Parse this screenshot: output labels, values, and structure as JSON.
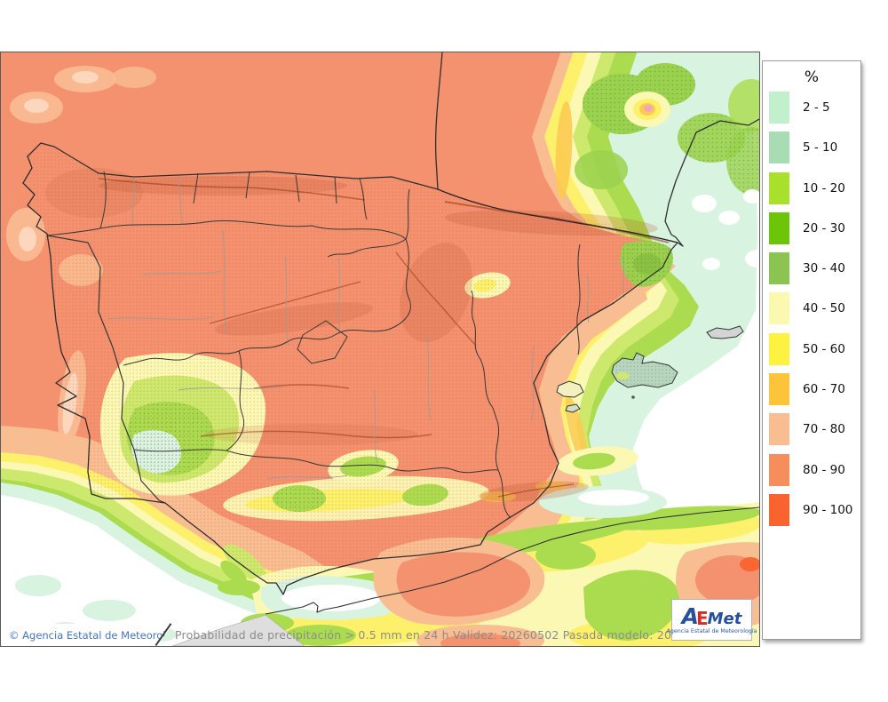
{
  "map": {
    "caption": "Probabilidad de precipitación > 0.5 mm en 24 h Validez: 20260502 Pasada modelo: 2026043000",
    "copyright": "© Agencia Estatal de Meteorología"
  },
  "logo": {
    "a": "A",
    "e": "E",
    "met": "Met",
    "subtitle": "Agencia Estatal de Meteorología"
  },
  "legend": {
    "title": "%",
    "items": [
      {
        "label": "2 - 5",
        "color": "#c2f0cd",
        "textured": false
      },
      {
        "label": "5 - 10",
        "color": "#a8dcb2",
        "textured": true
      },
      {
        "label": "10 - 20",
        "color": "#a9e02c",
        "textured": false
      },
      {
        "label": "20 - 30",
        "color": "#6dc50a",
        "textured": false
      },
      {
        "label": "30 - 40",
        "color": "#8cc452",
        "textured": true
      },
      {
        "label": "40 - 50",
        "color": "#fbf9b0",
        "textured": false
      },
      {
        "label": "50 - 60",
        "color": "#fdf23f",
        "textured": false
      },
      {
        "label": "60 - 70",
        "color": "#fdc339",
        "textured": false
      },
      {
        "label": "70 - 80",
        "color": "#f9bd92",
        "textured": true
      },
      {
        "label": "80 - 90",
        "color": "#f68e5c",
        "textured": false
      },
      {
        "label": "90 - 100",
        "color": "#f9642e",
        "textured": false
      }
    ]
  },
  "palette": {
    "sea_white": "#ffffff",
    "mint": "#d9f3e1",
    "green": "#abdc50",
    "yellow_green": "#cde96d",
    "pale_yellow": "#fbf8b4",
    "yellow": "#fdf06a",
    "amber": "#fcca50",
    "light_salmon": "#f9bd92",
    "salmon": "#f4916f",
    "orange_red": "#f9642e"
  }
}
